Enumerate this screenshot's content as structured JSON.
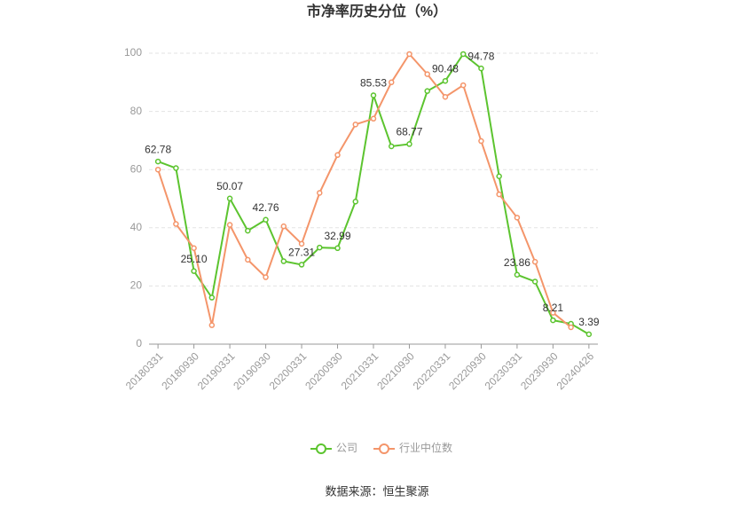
{
  "chart_data": {
    "type": "line",
    "title": "市净率历史分位（%）",
    "categories": [
      "20180331",
      null,
      "20180930",
      null,
      "20190331",
      null,
      "20190930",
      null,
      "20200331",
      null,
      "20200930",
      null,
      "20210331",
      null,
      "20210930",
      null,
      "20220331",
      null,
      "20220930",
      null,
      "20230331",
      null,
      "20230930",
      null,
      "20240426"
    ],
    "series": [
      {
        "name": "公司",
        "color": "#5cc42f",
        "values": [
          62.78,
          60.5,
          25.1,
          16,
          50.07,
          39,
          42.76,
          28.5,
          27.31,
          33.2,
          32.99,
          49,
          85.53,
          68,
          68.77,
          87,
          90.48,
          99.7,
          94.78,
          57.7,
          23.86,
          21.5,
          8.21,
          7,
          3.39
        ],
        "value_labels": [
          "62.78",
          null,
          "25.10",
          null,
          "50.07",
          null,
          "42.76",
          null,
          "27.31",
          null,
          "32.99",
          null,
          "85.53",
          null,
          "68.77",
          null,
          "90.48",
          null,
          "94.78",
          null,
          "23.86",
          null,
          "8.21",
          null,
          "3.39"
        ]
      },
      {
        "name": "行业中位数",
        "color": "#f4956a",
        "values": [
          60,
          41.3,
          33,
          6.5,
          41,
          29,
          23,
          40.5,
          34.5,
          52,
          65,
          75.5,
          77.5,
          90,
          99.7,
          92.8,
          85,
          89,
          69.8,
          51.5,
          43.5,
          28.3,
          10.8,
          5.8,
          null
        ]
      }
    ],
    "ylim": [
      0,
      100
    ],
    "yticks": [
      0,
      20,
      40,
      60,
      80,
      100
    ],
    "grid": true,
    "source": "数据来源：恒生聚源"
  }
}
